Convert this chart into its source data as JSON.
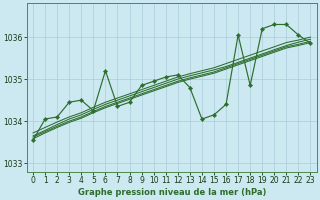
{
  "title": "Graphe pression niveau de la mer (hPa)",
  "background_color": "#cce8f0",
  "grid_color": "#aaccdd",
  "line_color": "#2d6e2d",
  "xlim": [
    -0.5,
    23.5
  ],
  "ylim": [
    1032.8,
    1036.8
  ],
  "yticks": [
    1033,
    1034,
    1035,
    1036
  ],
  "xticks": [
    0,
    1,
    2,
    3,
    4,
    5,
    6,
    7,
    8,
    9,
    10,
    11,
    12,
    13,
    14,
    15,
    16,
    17,
    18,
    19,
    20,
    21,
    22,
    23
  ],
  "main_series": [
    1033.55,
    1034.05,
    1034.1,
    1034.45,
    1034.5,
    1034.25,
    1035.2,
    1034.35,
    1034.45,
    1034.85,
    1034.95,
    1035.05,
    1035.1,
    1034.8,
    1034.05,
    1034.15,
    1034.4,
    1036.05,
    1034.85,
    1036.2,
    1036.3,
    1036.3,
    1036.05,
    1035.85
  ],
  "smooth_lines": [
    [
      1033.65,
      1033.78,
      1033.92,
      1034.05,
      1034.15,
      1034.28,
      1034.4,
      1034.5,
      1034.6,
      1034.7,
      1034.8,
      1034.9,
      1035.0,
      1035.08,
      1035.15,
      1035.22,
      1035.3,
      1035.4,
      1035.5,
      1035.6,
      1035.7,
      1035.8,
      1035.88,
      1035.95
    ],
    [
      1033.72,
      1033.85,
      1033.98,
      1034.1,
      1034.2,
      1034.33,
      1034.45,
      1034.55,
      1034.65,
      1034.75,
      1034.85,
      1034.95,
      1035.05,
      1035.13,
      1035.2,
      1035.27,
      1035.37,
      1035.47,
      1035.57,
      1035.67,
      1035.77,
      1035.87,
      1035.93,
      1036.0
    ],
    [
      1033.58,
      1033.72,
      1033.85,
      1033.97,
      1034.07,
      1034.2,
      1034.32,
      1034.42,
      1034.52,
      1034.62,
      1034.72,
      1034.82,
      1034.92,
      1035.0,
      1035.07,
      1035.14,
      1035.24,
      1035.34,
      1035.44,
      1035.54,
      1035.64,
      1035.74,
      1035.8,
      1035.87
    ],
    [
      1033.62,
      1033.75,
      1033.88,
      1034.0,
      1034.1,
      1034.23,
      1034.35,
      1034.45,
      1034.55,
      1034.65,
      1034.75,
      1034.85,
      1034.95,
      1035.03,
      1035.1,
      1035.17,
      1035.27,
      1035.37,
      1035.47,
      1035.57,
      1035.67,
      1035.77,
      1035.83,
      1035.9
    ]
  ],
  "tick_fontsize": 5.5,
  "xlabel_fontsize": 6.0
}
